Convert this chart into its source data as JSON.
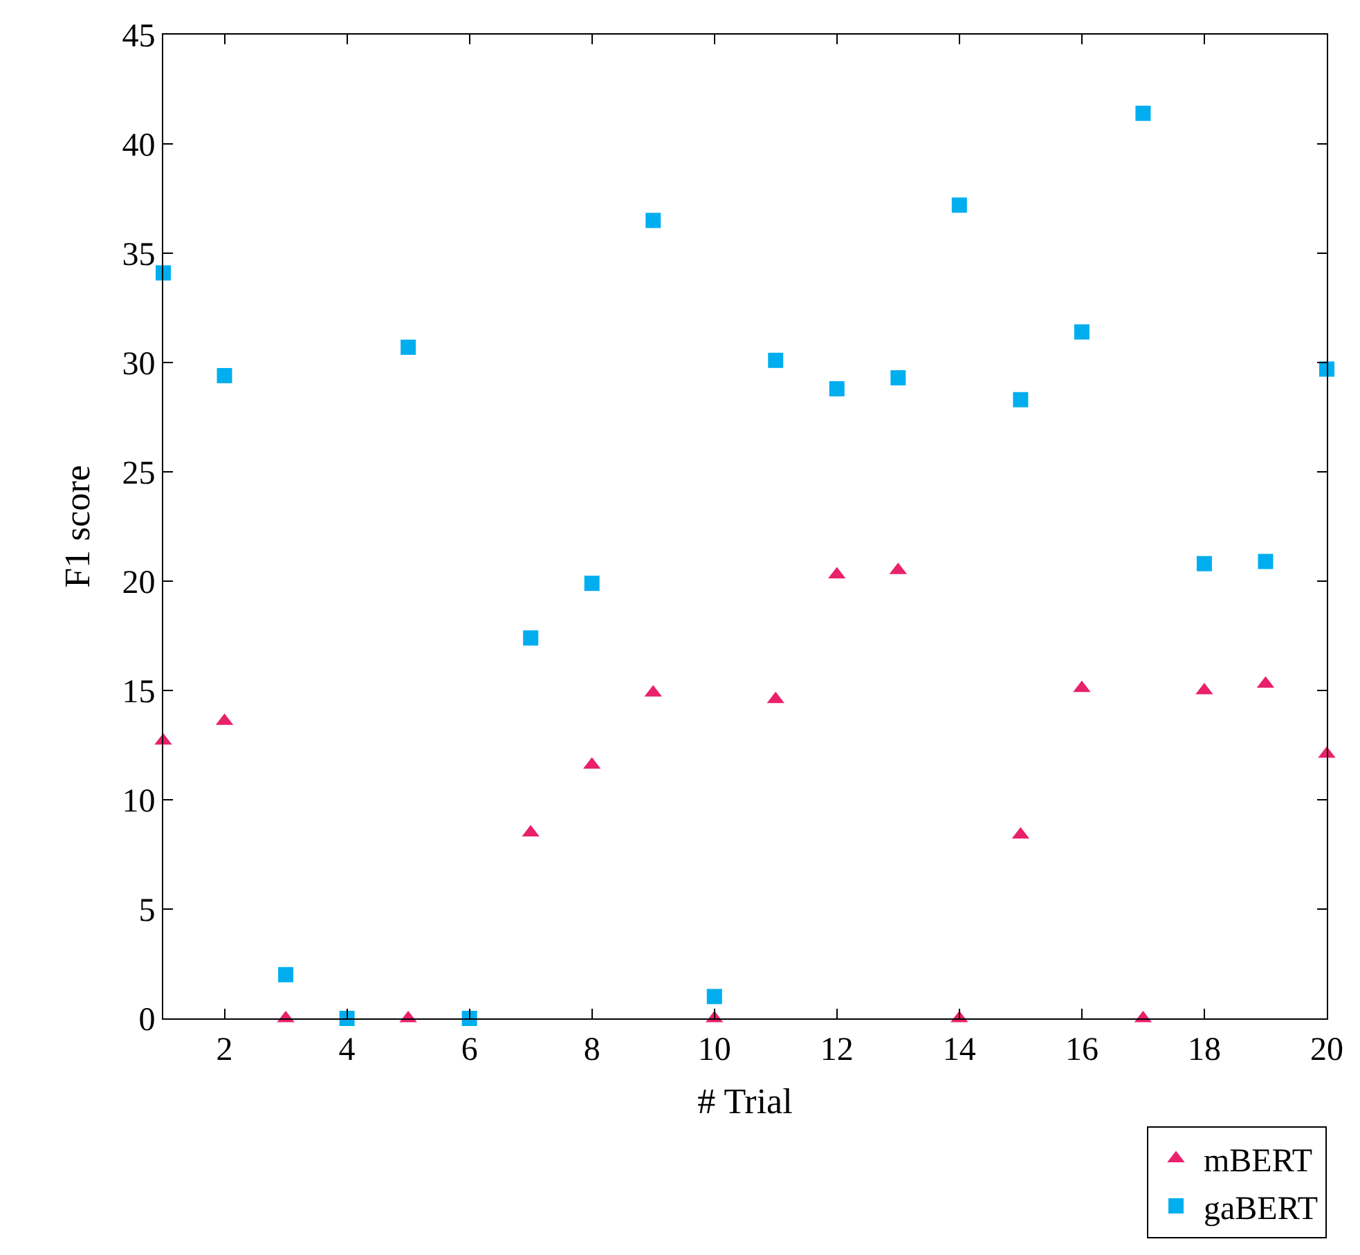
{
  "chart_data": {
    "type": "scatter",
    "xlabel": "# Trial",
    "ylabel": "F1 score",
    "x": [
      1,
      2,
      3,
      4,
      5,
      6,
      7,
      8,
      9,
      10,
      11,
      12,
      13,
      14,
      15,
      16,
      17,
      18,
      19,
      20
    ],
    "xlim": [
      1,
      20
    ],
    "xticks": [
      2,
      4,
      6,
      8,
      10,
      12,
      14,
      16,
      18,
      20
    ],
    "ylim": [
      0,
      45
    ],
    "yticks": [
      0,
      5,
      10,
      15,
      20,
      25,
      30,
      35,
      40,
      45
    ],
    "legend": "bottom right",
    "series": [
      {
        "name": "mBERT",
        "color": "#e8216a",
        "marker": "triangle",
        "values": [
          12.7,
          13.6,
          0,
          null,
          0,
          null,
          8.5,
          11.6,
          14.9,
          0,
          14.6,
          20.3,
          20.5,
          0,
          8.4,
          15.1,
          0,
          15.0,
          15.3,
          12.1
        ]
      },
      {
        "name": "gaBERT",
        "color": "#00aeef",
        "marker": "square",
        "values": [
          34.1,
          29.4,
          2.0,
          0,
          30.7,
          0,
          17.4,
          19.9,
          36.5,
          1.0,
          30.1,
          28.8,
          29.3,
          37.2,
          28.3,
          31.4,
          41.4,
          20.8,
          20.9,
          29.7
        ]
      }
    ]
  }
}
